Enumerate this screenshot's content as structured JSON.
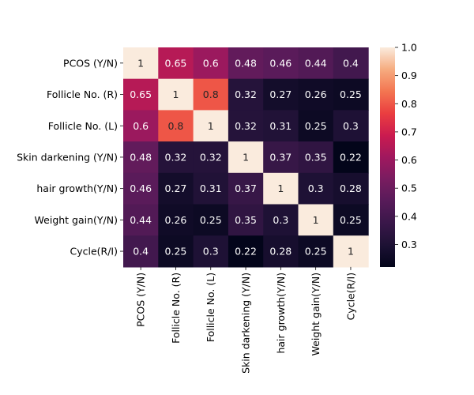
{
  "chart_data": {
    "type": "heatmap",
    "title": "",
    "xlabel": "",
    "ylabel": "",
    "rows": [
      "PCOS (Y/N)",
      "Follicle No. (R)",
      "Follicle No. (L)",
      "Skin darkening (Y/N)",
      "hair growth(Y/N)",
      "Weight gain(Y/N)",
      "Cycle(R/I)"
    ],
    "columns": [
      "PCOS (Y/N)",
      "Follicle No. (R)",
      "Follicle No. (L)",
      "Skin darkening (Y/N)",
      "hair growth(Y/N)",
      "Weight gain(Y/N)",
      "Cycle(R/I)"
    ],
    "values": [
      [
        1,
        0.65,
        0.6,
        0.48,
        0.46,
        0.44,
        0.4
      ],
      [
        0.65,
        1,
        0.8,
        0.32,
        0.27,
        0.26,
        0.25
      ],
      [
        0.6,
        0.8,
        1,
        0.32,
        0.31,
        0.25,
        0.3
      ],
      [
        0.48,
        0.32,
        0.32,
        1,
        0.37,
        0.35,
        0.22
      ],
      [
        0.46,
        0.27,
        0.31,
        0.37,
        1,
        0.3,
        0.28
      ],
      [
        0.44,
        0.26,
        0.25,
        0.35,
        0.3,
        1,
        0.25
      ],
      [
        0.4,
        0.25,
        0.3,
        0.22,
        0.28,
        0.25,
        1
      ]
    ],
    "colorbar": {
      "range": [
        0.22,
        1.0
      ],
      "ticks": [
        1.0,
        0.9,
        0.8,
        0.7,
        0.6,
        0.5,
        0.4,
        0.3
      ],
      "tick_labels": [
        "1.0",
        "0.9",
        "0.8",
        "0.7",
        "0.6",
        "0.5",
        "0.4",
        "0.3"
      ]
    },
    "colormap": "rocket",
    "annotations": true
  }
}
